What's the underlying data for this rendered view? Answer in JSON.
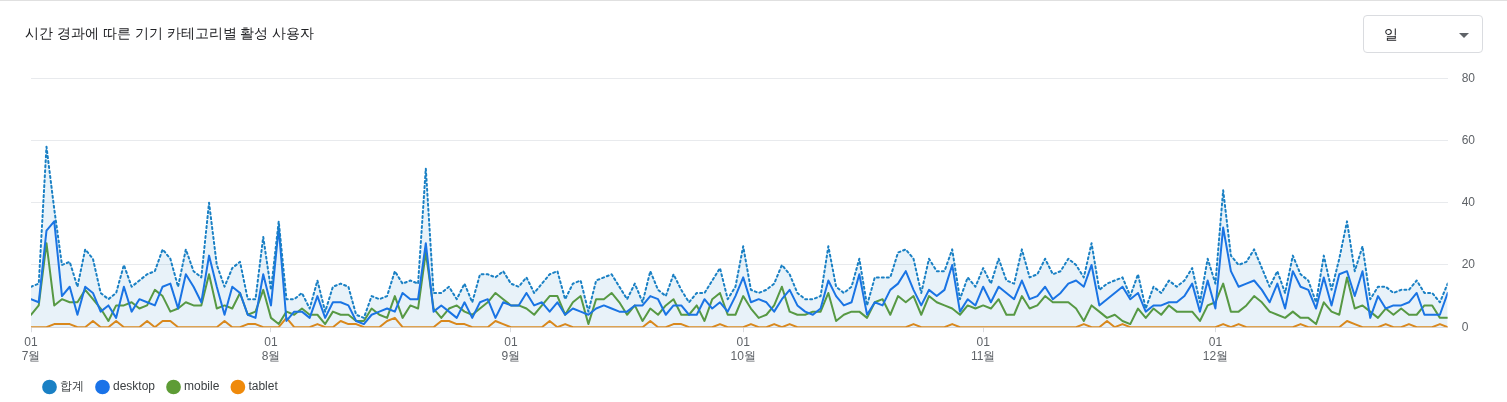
{
  "chart_data": {
    "type": "line",
    "title": "시간 경과에 따른 기기 카테고리별 활성 사용자",
    "annotations": [
      "일"
    ],
    "x": [
      "--07-01",
      "--07-02",
      "--07-03",
      "--07-04",
      "--07-05",
      "--07-06",
      "--07-07",
      "--07-08",
      "--07-09",
      "--07-10",
      "--07-11",
      "--07-12",
      "--07-13",
      "--07-14",
      "--07-15",
      "--07-16",
      "--07-17",
      "--07-18",
      "--07-19",
      "--07-20",
      "--07-21",
      "--07-22",
      "--07-23",
      "--07-24",
      "--07-25",
      "--07-26",
      "--07-27",
      "--07-28",
      "--07-29",
      "--07-30",
      "--07-31",
      "--08-01",
      "--08-02",
      "--08-03",
      "--08-04",
      "--08-05",
      "--08-06",
      "--08-07",
      "--08-08",
      "--08-09",
      "--08-10",
      "--08-11",
      "--08-12",
      "--08-13",
      "--08-14",
      "--08-15",
      "--08-16",
      "--08-17",
      "--08-18",
      "--08-19",
      "--08-20",
      "--08-21",
      "--08-22",
      "--08-23",
      "--08-24",
      "--08-25",
      "--08-26",
      "--08-27",
      "--08-28",
      "--08-29",
      "--08-30",
      "--08-31",
      "--09-01",
      "--09-02",
      "--09-03",
      "--09-04",
      "--09-05",
      "--09-06",
      "--09-07",
      "--09-08",
      "--09-09",
      "--09-10",
      "--09-11",
      "--09-12",
      "--09-13",
      "--09-14",
      "--09-15",
      "--09-16",
      "--09-17",
      "--09-18",
      "--09-19",
      "--09-20",
      "--09-21",
      "--09-22",
      "--09-23",
      "--09-24",
      "--09-25",
      "--09-26",
      "--09-27",
      "--09-28",
      "--09-29",
      "--09-30",
      "--10-01",
      "--10-02",
      "--10-03",
      "--10-04",
      "--10-05",
      "--10-06",
      "--10-07",
      "--10-08",
      "--10-09",
      "--10-10",
      "--10-11",
      "--10-12",
      "--10-13",
      "--10-14",
      "--10-15",
      "--10-16",
      "--10-17",
      "--10-18",
      "--10-19",
      "--10-20",
      "--10-21",
      "--10-22",
      "--10-23",
      "--10-24",
      "--10-25",
      "--10-26",
      "--10-27",
      "--10-28",
      "--10-29",
      "--10-30",
      "--10-31",
      "--11-01",
      "--11-02",
      "--11-03",
      "--11-04",
      "--11-05",
      "--11-06",
      "--11-07",
      "--11-08",
      "--11-09",
      "--11-10",
      "--11-11",
      "--11-12",
      "--11-13",
      "--11-14",
      "--11-15",
      "--11-16",
      "--11-17",
      "--11-18",
      "--11-19",
      "--11-20",
      "--11-21",
      "--11-22",
      "--11-23",
      "--11-24",
      "--11-25",
      "--11-26",
      "--11-27",
      "--11-28",
      "--11-29",
      "--11-30",
      "--12-01",
      "--12-02",
      "--12-03",
      "--12-04",
      "--12-05",
      "--12-06",
      "--12-07",
      "--12-08",
      "--12-09",
      "--12-10",
      "--12-11",
      "--12-12",
      "--12-13",
      "--12-14",
      "--12-15",
      "--12-16",
      "--12-17",
      "--12-18",
      "--12-19",
      "--12-20",
      "--12-21",
      "--12-22",
      "--12-23",
      "--12-24",
      "--12-25",
      "--12-26",
      "--12-27",
      "--12-28",
      "--12-29",
      "--12-30",
      "--12-31"
    ],
    "series": [
      {
        "name": "합계",
        "type": "area",
        "line_style": "dotted",
        "color": "#1a80c4",
        "values": [
          13,
          14,
          58,
          38,
          20,
          21,
          13,
          25,
          22,
          11,
          9,
          11,
          20,
          13,
          15,
          17,
          18,
          25,
          22,
          13,
          25,
          18,
          16,
          40,
          20,
          13,
          19,
          21,
          9,
          9,
          29,
          12,
          34,
          9,
          9,
          11,
          6,
          15,
          5,
          13,
          14,
          13,
          4,
          3,
          10,
          9,
          10,
          18,
          14,
          15,
          14,
          51,
          11,
          11,
          13,
          9,
          14,
          8,
          17,
          17,
          16,
          18,
          14,
          13,
          16,
          11,
          14,
          17,
          18,
          9,
          14,
          15,
          5,
          15,
          16,
          17,
          13,
          9,
          14,
          8,
          18,
          12,
          10,
          17,
          12,
          8,
          11,
          11,
          15,
          19,
          9,
          13,
          26,
          12,
          11,
          12,
          14,
          20,
          17,
          11,
          9,
          9,
          10,
          26,
          13,
          11,
          13,
          22,
          7,
          16,
          16,
          16,
          24,
          25,
          22,
          11,
          22,
          18,
          18,
          25,
          9,
          16,
          13,
          19,
          14,
          22,
          15,
          14,
          25,
          16,
          17,
          22,
          17,
          18,
          22,
          20,
          16,
          27,
          12,
          14,
          15,
          16,
          10,
          17,
          6,
          13,
          11,
          15,
          13,
          15,
          19,
          8,
          22,
          14,
          44,
          23,
          20,
          21,
          25,
          19,
          13,
          18,
          11,
          23,
          17,
          15,
          8,
          23,
          12,
          22,
          34,
          18,
          26,
          9,
          13,
          13,
          11,
          12,
          12,
          15,
          11,
          11,
          8,
          14
        ]
      },
      {
        "name": "desktop",
        "type": "line",
        "line_style": "solid",
        "color": "#1a73e8",
        "values": [
          9,
          8,
          31,
          34,
          10,
          13,
          4,
          13,
          11,
          5,
          7,
          3,
          13,
          5,
          9,
          8,
          7,
          13,
          14,
          6,
          17,
          13,
          8,
          23,
          13,
          4,
          13,
          11,
          4,
          3,
          17,
          7,
          32,
          2,
          5,
          5,
          3,
          10,
          3,
          8,
          8,
          7,
          2,
          1,
          4,
          5,
          6,
          5,
          11,
          9,
          9,
          27,
          5,
          7,
          5,
          3,
          8,
          3,
          8,
          9,
          3,
          8,
          7,
          7,
          11,
          7,
          8,
          5,
          8,
          4,
          6,
          5,
          4,
          6,
          7,
          6,
          5,
          5,
          7,
          7,
          10,
          9,
          4,
          7,
          7,
          4,
          4,
          9,
          6,
          8,
          5,
          10,
          16,
          8,
          9,
          8,
          5,
          9,
          12,
          7,
          5,
          4,
          6,
          15,
          10,
          7,
          8,
          17,
          4,
          8,
          7,
          12,
          14,
          18,
          12,
          7,
          12,
          10,
          12,
          20,
          5,
          9,
          7,
          13,
          8,
          13,
          11,
          9,
          15,
          9,
          10,
          13,
          9,
          11,
          14,
          15,
          13,
          20,
          7,
          9,
          11,
          13,
          9,
          11,
          5,
          7,
          7,
          8,
          8,
          10,
          14,
          5,
          15,
          6,
          32,
          18,
          13,
          14,
          15,
          12,
          8,
          14,
          6,
          18,
          13,
          12,
          6,
          16,
          7,
          17,
          18,
          10,
          18,
          3,
          10,
          6,
          7,
          7,
          8,
          11,
          4,
          4,
          4,
          11
        ]
      },
      {
        "name": "mobile",
        "type": "line",
        "line_style": "solid",
        "color": "#5e9c36",
        "values": [
          4,
          7,
          27,
          7,
          9,
          8,
          8,
          12,
          9,
          6,
          2,
          7,
          7,
          8,
          6,
          7,
          12,
          10,
          5,
          6,
          8,
          7,
          7,
          17,
          6,
          7,
          6,
          11,
          4,
          5,
          12,
          3,
          1,
          5,
          4,
          6,
          4,
          4,
          1,
          5,
          4,
          4,
          2,
          2,
          6,
          4,
          3,
          10,
          3,
          7,
          6,
          24,
          6,
          3,
          6,
          7,
          5,
          4,
          6,
          8,
          11,
          9,
          7,
          7,
          6,
          4,
          7,
          10,
          10,
          4,
          8,
          10,
          1,
          9,
          9,
          11,
          8,
          4,
          7,
          2,
          6,
          4,
          7,
          9,
          4,
          4,
          7,
          2,
          9,
          11,
          4,
          4,
          10,
          6,
          3,
          4,
          7,
          13,
          5,
          4,
          4,
          5,
          5,
          11,
          2,
          4,
          5,
          5,
          3,
          8,
          9,
          4,
          10,
          8,
          10,
          4,
          10,
          8,
          7,
          6,
          4,
          7,
          6,
          7,
          6,
          9,
          4,
          4,
          10,
          6,
          7,
          10,
          8,
          8,
          8,
          6,
          2,
          7,
          5,
          3,
          4,
          2,
          1,
          6,
          3,
          6,
          4,
          7,
          5,
          5,
          5,
          2,
          7,
          8,
          14,
          5,
          5,
          7,
          10,
          8,
          5,
          4,
          3,
          5,
          3,
          3,
          1,
          8,
          5,
          4,
          16,
          6,
          7,
          5,
          3,
          6,
          4,
          6,
          4,
          4,
          7,
          7,
          3,
          3
        ]
      },
      {
        "name": "tablet",
        "type": "line",
        "line_style": "solid",
        "color": "#ef8a0b",
        "values": [
          0,
          0,
          0,
          1,
          1,
          1,
          0,
          0,
          2,
          0,
          0,
          2,
          0,
          0,
          0,
          2,
          0,
          2,
          2,
          0,
          0,
          0,
          0,
          0,
          0,
          2,
          0,
          0,
          1,
          1,
          0,
          0,
          0,
          3,
          0,
          0,
          0,
          1,
          0,
          0,
          2,
          1,
          1,
          0,
          0,
          0,
          2,
          3,
          0,
          0,
          0,
          0,
          0,
          2,
          2,
          1,
          1,
          0,
          0,
          0,
          2,
          1,
          0,
          0,
          0,
          0,
          0,
          2,
          0,
          1,
          0,
          0,
          0,
          0,
          0,
          0,
          0,
          0,
          0,
          0,
          2,
          0,
          0,
          1,
          1,
          0,
          0,
          0,
          0,
          1,
          0,
          0,
          0,
          1,
          0,
          0,
          1,
          0,
          1,
          0,
          0,
          0,
          0,
          0,
          0,
          0,
          0,
          0,
          0,
          0,
          0,
          0,
          0,
          0,
          1,
          0,
          0,
          0,
          0,
          1,
          0,
          0,
          0,
          0,
          0,
          0,
          0,
          0,
          0,
          0,
          0,
          0,
          0,
          0,
          0,
          0,
          1,
          0,
          0,
          2,
          0,
          1,
          0,
          0,
          0,
          0,
          0,
          0,
          0,
          0,
          0,
          0,
          0,
          0,
          1,
          0,
          1,
          0,
          0,
          0,
          0,
          0,
          0,
          0,
          1,
          0,
          0,
          0,
          0,
          0,
          2,
          1,
          0,
          0,
          0,
          1,
          0,
          0,
          1,
          0,
          0,
          0,
          1,
          0
        ]
      }
    ],
    "xlim": [
      "--07-01",
      "--12-31"
    ],
    "xticks": [
      {
        "value": "--07-01",
        "label": "01\n7월"
      },
      {
        "value": "--08-01",
        "label": "01\n8월"
      },
      {
        "value": "--09-01",
        "label": "01\n9월"
      },
      {
        "value": "--10-01",
        "label": "01\n10월"
      },
      {
        "value": "--11-01",
        "label": "01\n11월"
      },
      {
        "value": "--12-01",
        "label": "01\n12월"
      }
    ],
    "ylim": [
      0,
      80
    ],
    "yticks": [
      0,
      20,
      40,
      60,
      80
    ],
    "grid": "y",
    "legend": "bottom left"
  }
}
